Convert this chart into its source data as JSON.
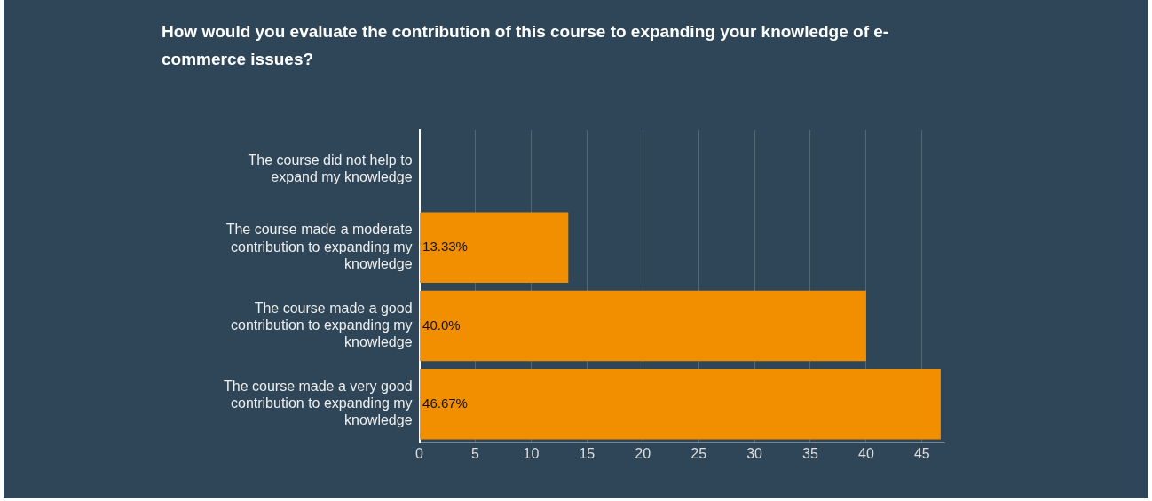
{
  "chart_data": {
    "type": "bar",
    "orientation": "horizontal",
    "title": "How would you evaluate the contribution of this course to expanding your knowledge of e-commerce issues?",
    "categories": [
      "The course did not help to expand my knowledge",
      "The course made a moderate contribution to expanding my knowledge",
      "The course made a good contribution to expanding my knowledge",
      "The course made a very good contribution to expanding my knowledge"
    ],
    "values": [
      0,
      13.33,
      40.0,
      46.67
    ],
    "value_labels": [
      null,
      "13.33%",
      "40.0%",
      "46.67%"
    ],
    "color": "#f28f00",
    "xlim": [
      0,
      47
    ],
    "xticks": [
      0,
      5,
      10,
      15,
      20,
      25,
      30,
      35,
      40,
      45
    ],
    "grid": "x"
  }
}
